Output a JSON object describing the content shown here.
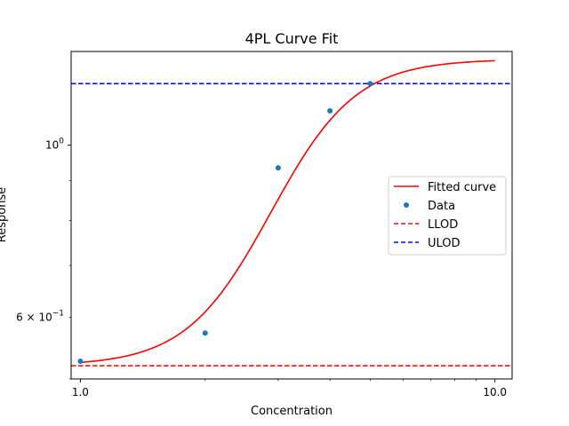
{
  "chart_data": {
    "type": "line",
    "title": "4PL Curve Fit",
    "xlabel": "Concentration",
    "ylabel": "Response",
    "x_scale": "log",
    "y_scale": "log",
    "xlim": [
      0.95,
      11.0
    ],
    "ylim": [
      0.5,
      1.32
    ],
    "x_ticks": [
      {
        "value": 1.0,
        "label": "1.0"
      },
      {
        "value": 10.0,
        "label": "10.0"
      }
    ],
    "y_ticks": [
      {
        "value": 1.0,
        "label": "10",
        "exponent": "0",
        "prefix": ""
      },
      {
        "value": 0.6,
        "label": "10",
        "exponent": "−1",
        "prefix": "6 × "
      }
    ],
    "fitted_curve": {
      "name": "Fitted curve",
      "color": "#ff0000",
      "bottom": 0.52,
      "top": 1.29,
      "ec50": 3.2,
      "hill": 4.3,
      "x_range": [
        1.0,
        10.0
      ]
    },
    "data_points": {
      "name": "Data",
      "color": "#1f77b4",
      "x": [
        1.0,
        2.0,
        3.0,
        4.0,
        5.0
      ],
      "y": [
        0.527,
        0.573,
        0.935,
        1.107,
        1.2
      ]
    },
    "reference_lines": [
      {
        "name": "LLOD",
        "value": 0.52,
        "color": "#ff0000",
        "style": "dashed"
      },
      {
        "name": "ULOD",
        "value": 1.2,
        "color": "#0000ff",
        "style": "dashed"
      }
    ],
    "legend": {
      "placement": "center-right",
      "entries": [
        "Fitted curve",
        "Data",
        "LLOD",
        "ULOD"
      ]
    },
    "grid": false
  }
}
